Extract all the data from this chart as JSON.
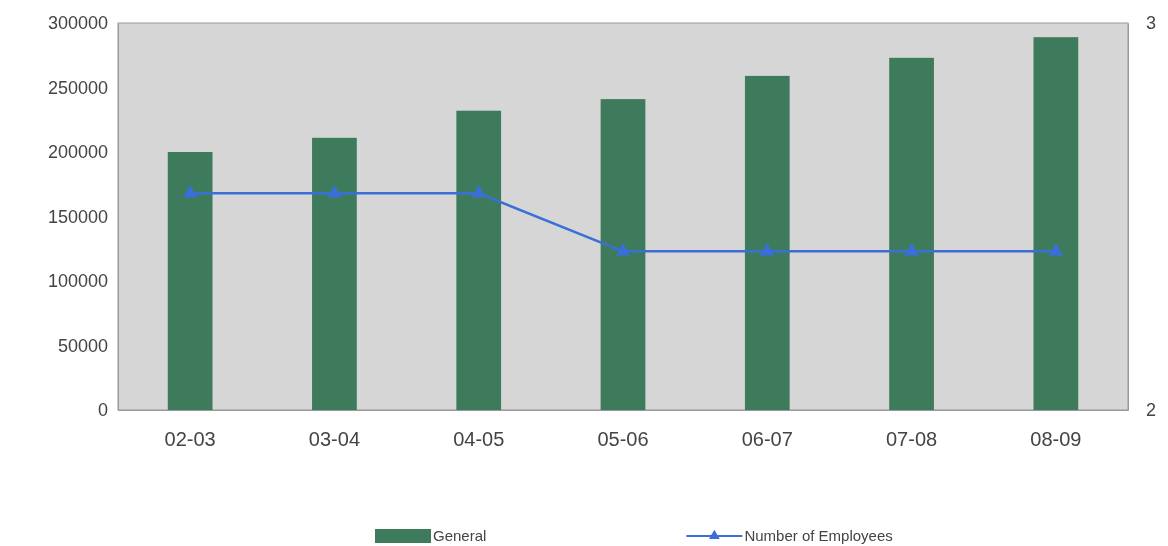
{
  "chart_data": {
    "type": "bar",
    "categories": [
      "02-03",
      "03-04",
      "04-05",
      "05-06",
      "06-07",
      "07-08",
      "08-09"
    ],
    "series": [
      {
        "name": "General",
        "color": "#3e7a5c",
        "values": [
          200000,
          211000,
          232000,
          241000,
          259000,
          273000,
          289000
        ]
      },
      {
        "name": "Number of Employees",
        "type": "line",
        "axis": "y2",
        "color": "#3a6fd8",
        "marker": "triangle",
        "values": [
          2.56,
          2.56,
          2.56,
          2.41,
          2.41,
          2.41,
          2.41
        ]
      }
    ],
    "ylim": [
      0,
      300000
    ],
    "yticks": [
      0,
      50000,
      100000,
      150000,
      200000,
      250000,
      300000
    ],
    "y2lim": [
      2,
      3
    ],
    "y2ticks": [
      2,
      3
    ],
    "grid": false,
    "legend": "bottom"
  }
}
